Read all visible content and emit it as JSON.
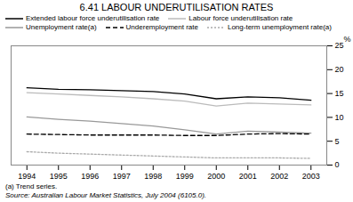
{
  "chart_data": {
    "type": "line",
    "title": "6.41  LABOUR UNDERUTILISATION RATES",
    "y_label": "%",
    "x": [
      1994,
      1995,
      1996,
      1997,
      1998,
      1999,
      2000,
      2001,
      2002,
      2003
    ],
    "xlim": [
      1993.5,
      2003.5
    ],
    "xticks": [
      1994,
      1995,
      1996,
      1997,
      1998,
      1999,
      2000,
      2001,
      2002,
      2003
    ],
    "ylim": [
      0,
      25
    ],
    "yticks": [
      0,
      5,
      10,
      15,
      20,
      25
    ],
    "grid": false,
    "legend": "top",
    "series": [
      {
        "name": "Extended labour force underutilisation rate",
        "color": "#000000",
        "line_style": "solid",
        "values": [
          16.2,
          15.9,
          15.8,
          15.6,
          15.4,
          14.9,
          13.9,
          14.3,
          14.1,
          13.6
        ]
      },
      {
        "name": "Labour force underutilisation rate",
        "color": "#bbbbbb",
        "line_style": "solid",
        "values": [
          15.2,
          14.9,
          14.6,
          14.3,
          13.9,
          13.4,
          12.4,
          13.0,
          12.8,
          12.6
        ]
      },
      {
        "name": "Unemployment rate(a)",
        "color": "#999999",
        "line_style": "solid",
        "values": [
          10.1,
          9.6,
          9.2,
          8.7,
          8.2,
          7.4,
          6.5,
          7.1,
          6.9,
          6.7
        ]
      },
      {
        "name": "Underemployment rate",
        "color": "#000000",
        "line_style": "dashed",
        "values": [
          6.5,
          6.4,
          6.3,
          6.3,
          6.3,
          6.2,
          6.2,
          6.5,
          6.6,
          6.5
        ]
      },
      {
        "name": "Long-term unemployment rate(a)",
        "color": "#aaaaaa",
        "line_style": "dotted",
        "values": [
          2.8,
          2.5,
          2.3,
          2.1,
          1.9,
          1.7,
          1.5,
          1.5,
          1.5,
          1.4
        ]
      }
    ],
    "annotations": [
      "(a) Trend series.",
      "Source: Australian Labour Market Statistics, July 2004 (6105.0)."
    ]
  }
}
